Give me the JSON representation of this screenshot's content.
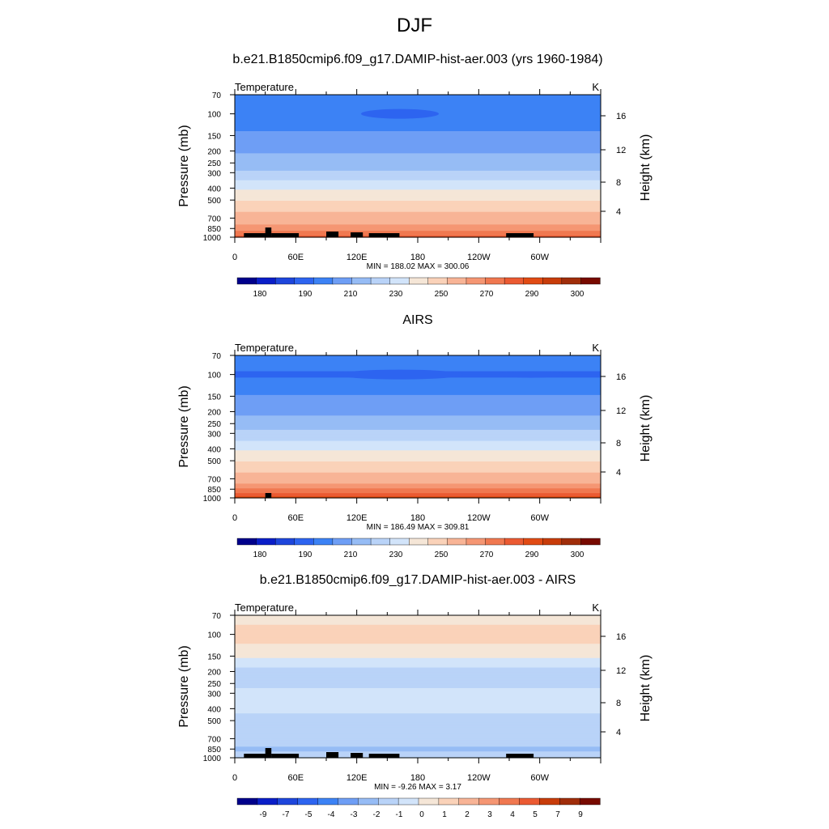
{
  "figure_title": "DJF",
  "colors": {
    "temp_scale": [
      "#00008b",
      "#0a1ec8",
      "#1e46dc",
      "#2d64f0",
      "#3c82f5",
      "#6e9ef5",
      "#96bcf5",
      "#b9d3f8",
      "#d2e4fa",
      "#f5e6d7",
      "#fad2b9",
      "#f8b496",
      "#f59673",
      "#f07850",
      "#eb5a32",
      "#e14b14",
      "#c83c0a",
      "#a02d0a",
      "#780a00"
    ],
    "diff_scale": [
      "#00008b",
      "#0a1ec8",
      "#1e46dc",
      "#2d64f0",
      "#3c82f5",
      "#6e9ef5",
      "#96bcf5",
      "#b9d3f8",
      "#d2e4fa",
      "#f5e6d7",
      "#fad2b9",
      "#f8b496",
      "#f59673",
      "#f07850",
      "#eb5a32",
      "#c83c0a",
      "#a02d0a",
      "#780a00"
    ],
    "terrain": "#000000",
    "frame": "#000000"
  },
  "chart_data": [
    {
      "type": "heatmap",
      "title": "b.e21.B1850cmip6.f09_g17.DAMIP-hist-aer.003 (yrs 1960-1984)",
      "left_label": "Temperature",
      "right_label": "K",
      "ylabel": "Pressure (mb)",
      "ylabel_right": "Height (km)",
      "xticks": [
        "0",
        "60E",
        "120E",
        "180",
        "120W",
        "60W"
      ],
      "yticks": [
        "70",
        "100",
        "150",
        "200",
        "250",
        "300",
        "400",
        "500",
        "700",
        "850",
        "1000"
      ],
      "height_ticks": [
        "16",
        "12",
        "8",
        "4"
      ],
      "xlim": [
        0,
        360
      ],
      "ylim": [
        1000,
        70
      ],
      "minmax_text": "MIN = 188.02  MAX = 300.06",
      "colorbar_labels": [
        "180",
        "190",
        "210",
        "230",
        "250",
        "270",
        "290",
        "300"
      ],
      "levels": [
        {
          "p": 70,
          "t": 209
        },
        {
          "p": 100,
          "t": 201
        },
        {
          "p": 150,
          "t": 212
        },
        {
          "p": 200,
          "t": 219
        },
        {
          "p": 250,
          "t": 224
        },
        {
          "p": 300,
          "t": 232
        },
        {
          "p": 400,
          "t": 248
        },
        {
          "p": 500,
          "t": 259
        },
        {
          "p": 700,
          "t": 275
        },
        {
          "p": 850,
          "t": 283
        },
        {
          "p": 1000,
          "t": 292
        }
      ]
    },
    {
      "type": "heatmap",
      "title": "AIRS",
      "left_label": "Temperature",
      "right_label": "K",
      "ylabel": "Pressure (mb)",
      "ylabel_right": "Height (km)",
      "xticks": [
        "0",
        "60E",
        "120E",
        "180",
        "120W",
        "60W"
      ],
      "yticks": [
        "70",
        "100",
        "150",
        "200",
        "250",
        "300",
        "400",
        "500",
        "700",
        "850",
        "1000"
      ],
      "height_ticks": [
        "16",
        "12",
        "8",
        "4"
      ],
      "xlim": [
        0,
        360
      ],
      "ylim": [
        1000,
        70
      ],
      "minmax_text": "MIN = 186.49  MAX = 309.81",
      "colorbar_labels": [
        "180",
        "190",
        "210",
        "230",
        "250",
        "270",
        "290",
        "300"
      ],
      "levels": [
        {
          "p": 70,
          "t": 208
        },
        {
          "p": 100,
          "t": 198
        },
        {
          "p": 150,
          "t": 211
        },
        {
          "p": 200,
          "t": 218
        },
        {
          "p": 250,
          "t": 224
        },
        {
          "p": 300,
          "t": 233
        },
        {
          "p": 400,
          "t": 249
        },
        {
          "p": 500,
          "t": 260
        },
        {
          "p": 700,
          "t": 276
        },
        {
          "p": 850,
          "t": 285
        },
        {
          "p": 1000,
          "t": 296
        }
      ]
    },
    {
      "type": "heatmap",
      "title": "b.e21.B1850cmip6.f09_g17.DAMIP-hist-aer.003 - AIRS",
      "left_label": "Temperature",
      "right_label": "K",
      "ylabel": "Pressure (mb)",
      "ylabel_right": "Height (km)",
      "xticks": [
        "0",
        "60E",
        "120E",
        "180",
        "120W",
        "60W"
      ],
      "yticks": [
        "70",
        "100",
        "150",
        "200",
        "250",
        "300",
        "400",
        "500",
        "700",
        "850",
        "1000"
      ],
      "height_ticks": [
        "16",
        "12",
        "8",
        "4"
      ],
      "xlim": [
        0,
        360
      ],
      "ylim": [
        1000,
        70
      ],
      "minmax_text": "MIN = -9.26  MAX =   3.17",
      "colorbar_labels": [
        "-9",
        "-7",
        "-5",
        "-4",
        "-3",
        "-2",
        "-1",
        "0",
        "1",
        "2",
        "3",
        "4",
        "5",
        "7",
        "9"
      ],
      "levels": [
        {
          "p": 70,
          "t": 0.4
        },
        {
          "p": 100,
          "t": 1.6
        },
        {
          "p": 150,
          "t": 0.2
        },
        {
          "p": 200,
          "t": -1.4
        },
        {
          "p": 250,
          "t": -1.3
        },
        {
          "p": 300,
          "t": -0.7
        },
        {
          "p": 400,
          "t": -0.9
        },
        {
          "p": 500,
          "t": -1.2
        },
        {
          "p": 700,
          "t": -1.5
        },
        {
          "p": 850,
          "t": -2.1
        },
        {
          "p": 1000,
          "t": -1.8
        }
      ]
    }
  ]
}
